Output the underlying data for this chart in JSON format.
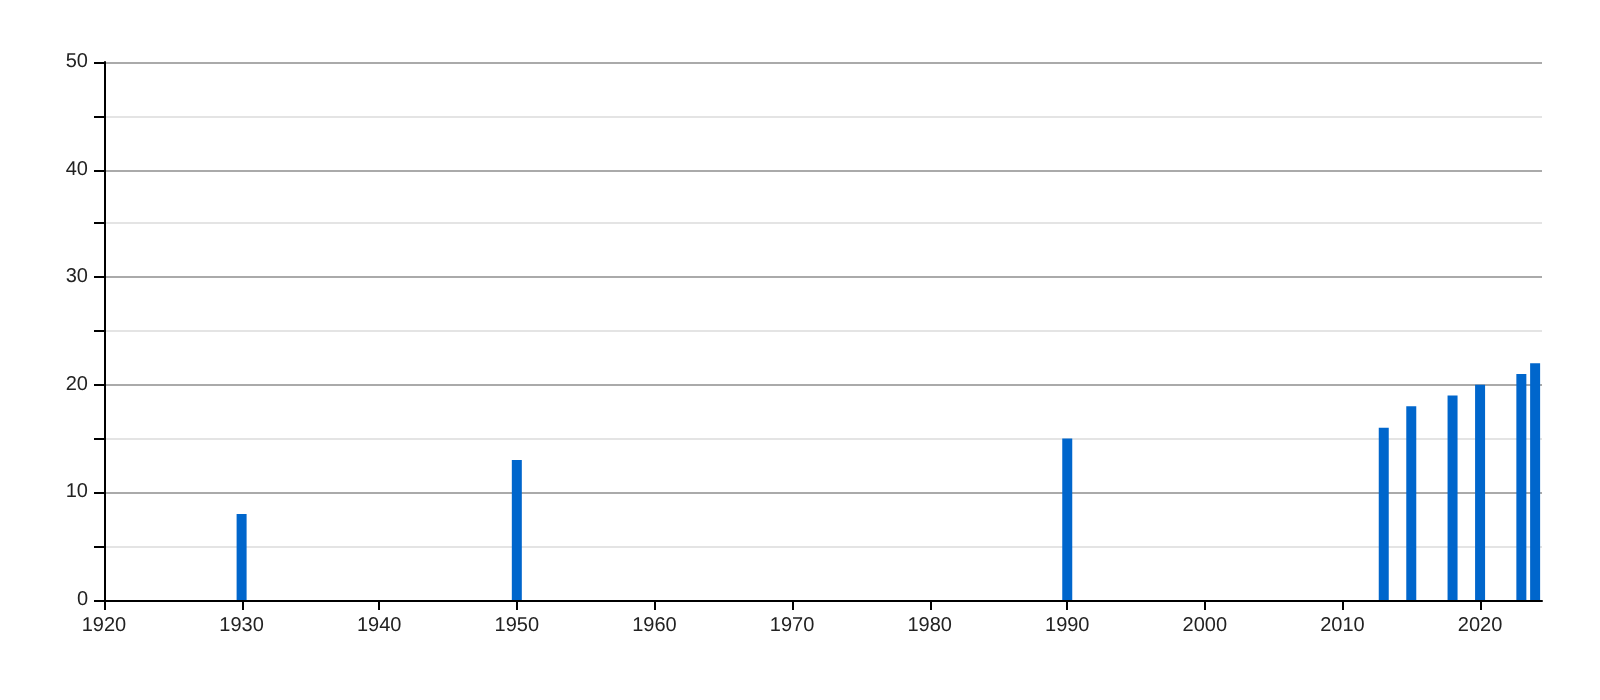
{
  "chart_data": {
    "type": "bar",
    "x": [
      1930,
      1950,
      1990,
      2013,
      2015,
      2018,
      2020,
      2023,
      2024
    ],
    "values": [
      8,
      13,
      15,
      16,
      18,
      19,
      20,
      21,
      22
    ],
    "color": "#0066cc",
    "xlim": [
      1920,
      2024.5
    ],
    "xticks": [
      1920,
      1930,
      1940,
      1950,
      1960,
      1970,
      1980,
      1990,
      2000,
      2010,
      2020
    ],
    "ylim": [
      0,
      50
    ],
    "yticks": [
      0,
      10,
      20,
      30,
      40,
      50
    ],
    "grid": "y"
  }
}
